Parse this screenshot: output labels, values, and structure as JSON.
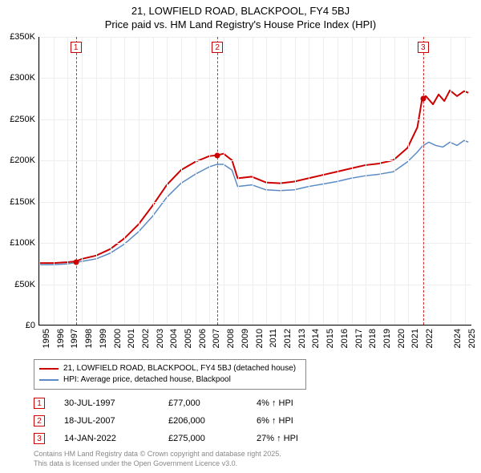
{
  "title": {
    "line1": "21, LOWFIELD ROAD, BLACKPOOL, FY4 5BJ",
    "line2": "Price paid vs. HM Land Registry's House Price Index (HPI)"
  },
  "chart": {
    "type": "line",
    "background_color": "#ffffff",
    "grid_color": "#eeeeee",
    "axis_color": "#000000",
    "x": {
      "min": 1995,
      "max": 2025.5,
      "ticks": [
        1995,
        1996,
        1997,
        1998,
        1999,
        2000,
        2001,
        2002,
        2003,
        2004,
        2005,
        2006,
        2007,
        2008,
        2009,
        2010,
        2011,
        2012,
        2013,
        2014,
        2015,
        2016,
        2017,
        2018,
        2019,
        2020,
        2021,
        2022,
        2024,
        2025
      ]
    },
    "y": {
      "min": 0,
      "max": 350000,
      "ticks": [
        0,
        50000,
        100000,
        150000,
        200000,
        250000,
        300000,
        350000
      ],
      "prefix": "£",
      "suffix_k": true
    },
    "label_fontsize": 11,
    "series": [
      {
        "name": "21, LOWFIELD ROAD, BLACKPOOL, FY4 5BJ (detached house)",
        "color": "#cc0000",
        "width": 2,
        "data": [
          [
            1995,
            75000
          ],
          [
            1996,
            75000
          ],
          [
            1997,
            76000
          ],
          [
            1997.58,
            77000
          ],
          [
            1998,
            80000
          ],
          [
            1999,
            84000
          ],
          [
            2000,
            92000
          ],
          [
            2001,
            105000
          ],
          [
            2002,
            122000
          ],
          [
            2003,
            145000
          ],
          [
            2004,
            170000
          ],
          [
            2005,
            188000
          ],
          [
            2006,
            198000
          ],
          [
            2007,
            205000
          ],
          [
            2007.55,
            206000
          ],
          [
            2008,
            208000
          ],
          [
            2008.6,
            200000
          ],
          [
            2009,
            178000
          ],
          [
            2010,
            180000
          ],
          [
            2011,
            173000
          ],
          [
            2012,
            172000
          ],
          [
            2013,
            174000
          ],
          [
            2014,
            178000
          ],
          [
            2015,
            182000
          ],
          [
            2016,
            186000
          ],
          [
            2017,
            190000
          ],
          [
            2018,
            194000
          ],
          [
            2019,
            196000
          ],
          [
            2020,
            200000
          ],
          [
            2021,
            215000
          ],
          [
            2021.7,
            240000
          ],
          [
            2022.04,
            275000
          ],
          [
            2022.3,
            278000
          ],
          [
            2022.8,
            268000
          ],
          [
            2023.2,
            280000
          ],
          [
            2023.6,
            272000
          ],
          [
            2024,
            285000
          ],
          [
            2024.5,
            278000
          ],
          [
            2025,
            284000
          ],
          [
            2025.3,
            282000
          ]
        ]
      },
      {
        "name": "HPI: Average price, detached house, Blackpool",
        "color": "#5b8bc4",
        "width": 1.5,
        "data": [
          [
            1995,
            73000
          ],
          [
            1996,
            73000
          ],
          [
            1997,
            74000
          ],
          [
            1998,
            77000
          ],
          [
            1999,
            80000
          ],
          [
            2000,
            87000
          ],
          [
            2001,
            98000
          ],
          [
            2002,
            113000
          ],
          [
            2003,
            132000
          ],
          [
            2004,
            155000
          ],
          [
            2005,
            172000
          ],
          [
            2006,
            183000
          ],
          [
            2007,
            192000
          ],
          [
            2007.55,
            195000
          ],
          [
            2008,
            195000
          ],
          [
            2008.6,
            188000
          ],
          [
            2009,
            168000
          ],
          [
            2010,
            170000
          ],
          [
            2011,
            164000
          ],
          [
            2012,
            163000
          ],
          [
            2013,
            164000
          ],
          [
            2014,
            168000
          ],
          [
            2015,
            171000
          ],
          [
            2016,
            174000
          ],
          [
            2017,
            178000
          ],
          [
            2018,
            181000
          ],
          [
            2019,
            183000
          ],
          [
            2020,
            186000
          ],
          [
            2021,
            198000
          ],
          [
            2021.7,
            210000
          ],
          [
            2022.04,
            217000
          ],
          [
            2022.5,
            222000
          ],
          [
            2023,
            218000
          ],
          [
            2023.5,
            216000
          ],
          [
            2024,
            222000
          ],
          [
            2024.5,
            218000
          ],
          [
            2025,
            224000
          ],
          [
            2025.3,
            222000
          ]
        ]
      }
    ],
    "events": [
      {
        "n": "1",
        "x": 1997.58,
        "date": "30-JUL-1997",
        "price": "£77,000",
        "pct": "4% ↑ HPI"
      },
      {
        "n": "2",
        "x": 2007.55,
        "date": "18-JUL-2007",
        "price": "£206,000",
        "pct": "6% ↑ HPI"
      },
      {
        "n": "3",
        "x": 2022.04,
        "date": "14-JAN-2022",
        "price": "£275,000",
        "pct": "27% ↑ HPI"
      }
    ],
    "markers": [
      {
        "x": 1997.58,
        "y": 77000
      },
      {
        "x": 2007.55,
        "y": 206000
      },
      {
        "x": 2022.04,
        "y": 275000
      }
    ]
  },
  "legend": {
    "items": [
      {
        "color": "#cc0000",
        "label": "21, LOWFIELD ROAD, BLACKPOOL, FY4 5BJ (detached house)"
      },
      {
        "color": "#5b8bc4",
        "label": "HPI: Average price, detached house, Blackpool"
      }
    ]
  },
  "footer": {
    "line1": "Contains HM Land Registry data © Crown copyright and database right 2025.",
    "line2": "This data is licensed under the Open Government Licence v3.0."
  }
}
